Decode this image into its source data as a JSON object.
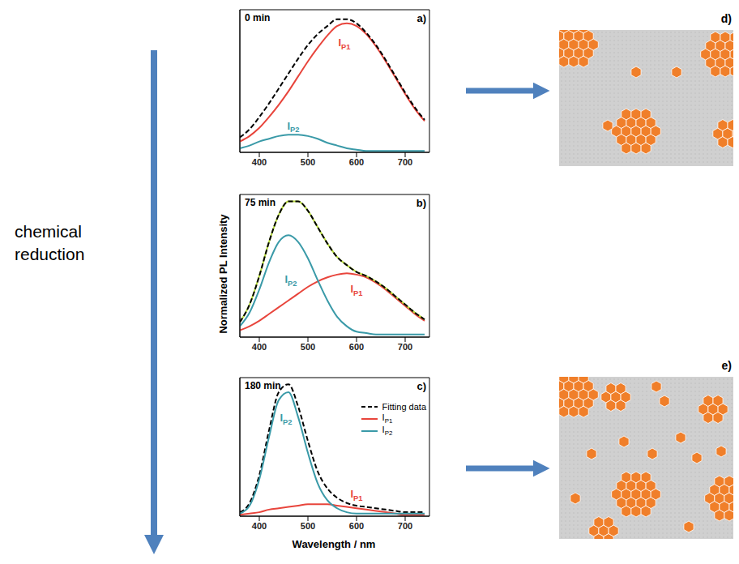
{
  "chart_data": [
    {
      "type": "line",
      "title": "0 min",
      "panel": "a)",
      "x": [
        360,
        380,
        400,
        420,
        440,
        460,
        480,
        500,
        520,
        540,
        560,
        580,
        600,
        620,
        640,
        660,
        680,
        700,
        720,
        740
      ],
      "xlim": [
        360,
        750
      ],
      "xticks": [
        400,
        500,
        600,
        700
      ],
      "ylim": [
        0,
        1.05
      ],
      "tick_labels": "x",
      "series": [
        {
          "name": "IP1",
          "color": "#e8453c",
          "values": [
            0.08,
            0.12,
            0.18,
            0.26,
            0.35,
            0.45,
            0.56,
            0.67,
            0.77,
            0.86,
            0.93,
            0.95,
            0.93,
            0.87,
            0.78,
            0.67,
            0.55,
            0.43,
            0.32,
            0.23
          ]
        },
        {
          "name": "IP2",
          "color": "#3a9aa8",
          "values": [
            0.03,
            0.05,
            0.08,
            0.1,
            0.12,
            0.13,
            0.13,
            0.12,
            0.1,
            0.07,
            0.05,
            0.03,
            0.02,
            0.01,
            0.01,
            0.01,
            0.01,
            0.01,
            0.01,
            0.01
          ]
        },
        {
          "name": "Fitting data",
          "color": "#000000",
          "line_style": "dashed",
          "values": [
            0.11,
            0.17,
            0.26,
            0.36,
            0.47,
            0.58,
            0.69,
            0.79,
            0.87,
            0.93,
            0.98,
            0.98,
            0.95,
            0.88,
            0.79,
            0.68,
            0.56,
            0.44,
            0.33,
            0.24
          ]
        }
      ],
      "annotations": [
        {
          "text": "IP1",
          "x": 575,
          "y": 0.78
        },
        {
          "text": "IP2",
          "x": 470,
          "y": 0.17
        }
      ]
    },
    {
      "type": "line",
      "title": "75 min",
      "panel": "b)",
      "ylabel": "Normalized PL Intensity",
      "x": [
        360,
        380,
        400,
        420,
        440,
        460,
        480,
        500,
        520,
        540,
        560,
        580,
        600,
        620,
        640,
        660,
        680,
        700,
        720,
        740
      ],
      "xlim": [
        360,
        750
      ],
      "xticks": [
        400,
        500,
        600,
        700
      ],
      "ylim": [
        0,
        1.05
      ],
      "tick_labels": "x",
      "series": [
        {
          "name": "IP1",
          "color": "#e8453c",
          "values": [
            0.05,
            0.08,
            0.12,
            0.17,
            0.22,
            0.27,
            0.32,
            0.37,
            0.41,
            0.44,
            0.46,
            0.47,
            0.46,
            0.44,
            0.4,
            0.35,
            0.29,
            0.23,
            0.17,
            0.12
          ]
        },
        {
          "name": "IP2",
          "color": "#3a9aa8",
          "values": [
            0.08,
            0.18,
            0.35,
            0.55,
            0.7,
            0.75,
            0.7,
            0.58,
            0.42,
            0.27,
            0.15,
            0.08,
            0.04,
            0.03,
            0.02,
            0.02,
            0.02,
            0.02,
            0.02,
            0.02
          ]
        },
        {
          "color": "#b8dc3c",
          "values": [
            0.11,
            0.24,
            0.45,
            0.7,
            0.9,
            1.0,
            1.0,
            0.93,
            0.81,
            0.69,
            0.59,
            0.53,
            0.48,
            0.45,
            0.41,
            0.36,
            0.3,
            0.24,
            0.18,
            0.13
          ]
        },
        {
          "name": "Fitting data",
          "color": "#000000",
          "line_style": "dashed",
          "values": [
            0.11,
            0.24,
            0.45,
            0.7,
            0.9,
            1.0,
            1.0,
            0.93,
            0.81,
            0.69,
            0.59,
            0.53,
            0.48,
            0.45,
            0.41,
            0.36,
            0.3,
            0.24,
            0.18,
            0.13
          ]
        }
      ],
      "annotations": [
        {
          "text": "IP2",
          "x": 465,
          "y": 0.4
        },
        {
          "text": "IP1",
          "x": 600,
          "y": 0.33
        }
      ]
    },
    {
      "type": "line",
      "title": "180 min",
      "panel": "c)",
      "xlabel": "Wavelength / nm",
      "legend": "upper right",
      "x": [
        360,
        380,
        400,
        420,
        440,
        460,
        480,
        500,
        520,
        540,
        560,
        580,
        600,
        620,
        640,
        660,
        680,
        700,
        720,
        740
      ],
      "xlim": [
        360,
        750
      ],
      "xticks": [
        400,
        500,
        600,
        700
      ],
      "ylim": [
        0,
        1.05
      ],
      "tick_labels": "x",
      "series": [
        {
          "name": "Fitting data",
          "color": "#000000",
          "line_style": "dashed",
          "values": [
            0.03,
            0.1,
            0.31,
            0.65,
            0.94,
            1.0,
            0.83,
            0.57,
            0.34,
            0.21,
            0.14,
            0.1,
            0.08,
            0.07,
            0.06,
            0.05,
            0.04,
            0.03,
            0.03,
            0.03
          ]
        },
        {
          "name": "IP1",
          "color": "#e8453c",
          "values": [
            0.01,
            0.02,
            0.03,
            0.05,
            0.06,
            0.07,
            0.08,
            0.09,
            0.09,
            0.09,
            0.08,
            0.07,
            0.06,
            0.05,
            0.04,
            0.03,
            0.02,
            0.01,
            0.01,
            0.01
          ]
        },
        {
          "name": "IP2",
          "color": "#3a9aa8",
          "values": [
            0.02,
            0.08,
            0.28,
            0.6,
            0.88,
            0.94,
            0.75,
            0.48,
            0.25,
            0.12,
            0.06,
            0.03,
            0.02,
            0.02,
            0.02,
            0.02,
            0.02,
            0.02,
            0.02,
            0.02
          ]
        }
      ],
      "annotations": [
        {
          "text": "IP2",
          "x": 455,
          "y": 0.72
        },
        {
          "text": "IP1",
          "x": 600,
          "y": 0.14
        }
      ]
    }
  ],
  "figure": {
    "left_label": "chemical reduction",
    "panels": [
      "d)",
      "e)"
    ]
  }
}
